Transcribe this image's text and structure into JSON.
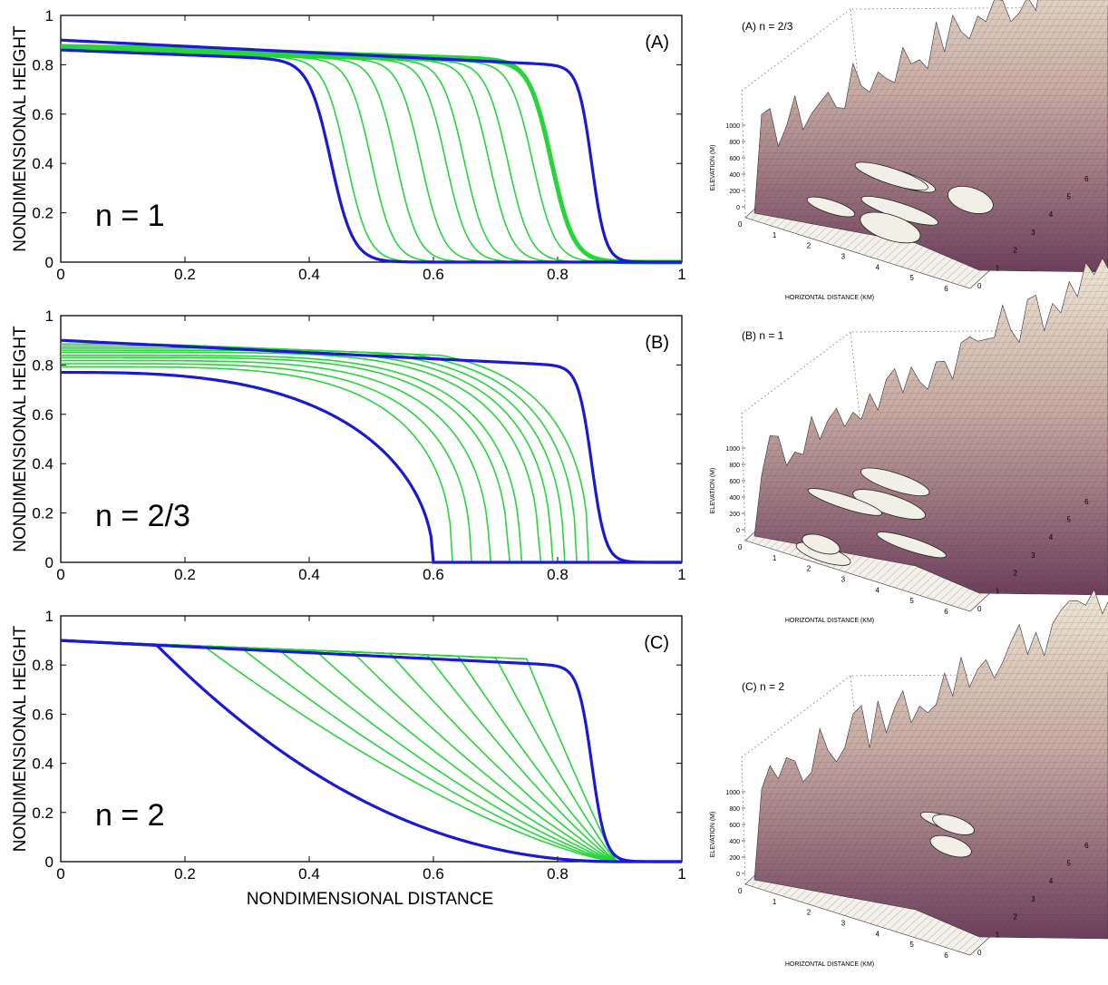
{
  "figure": {
    "left_panels": {
      "ylabel": "NONDIMENSIONAL HEIGHT",
      "xlabel": "NONDIMENSIONAL DISTANCE"
    },
    "right_panels": {
      "zlabel": "ELEVATION (M)",
      "xlabel": "HORIZONTAL DISTANCE (KM)"
    }
  },
  "colors": {
    "envelope": "#1a1ad6",
    "intermediate": "#27d43a",
    "surface_light": "#ece6d2",
    "surface_dark": "#7a4a66"
  },
  "chart_data": [
    {
      "type": "line",
      "panel_label": "(A)",
      "annotation": "n = 1",
      "xlim": [
        0,
        1
      ],
      "ylim": [
        0,
        1
      ],
      "x_ticks": [
        "0",
        "0.2",
        "0.4",
        "0.6",
        "0.8",
        "1"
      ],
      "y_ticks": [
        "0",
        "0.2",
        "0.4",
        "0.6",
        "0.8",
        "1"
      ],
      "grid": false,
      "profile": "sigmoid",
      "series": [
        {
          "role": "initial",
          "x": [
            0,
            0.8,
            0.83,
            0.86,
            0.88,
            0.9,
            1
          ],
          "y": [
            0.9,
            0.82,
            0.7,
            0.4,
            0.1,
            0.01,
            0
          ]
        },
        {
          "role": "final",
          "x": [
            0,
            0.38,
            0.41,
            0.43,
            0.45,
            0.48,
            0.52,
            1
          ],
          "y": [
            0.86,
            0.82,
            0.62,
            0.4,
            0.2,
            0.05,
            0.0,
            0
          ]
        },
        {
          "role": "intermediate_fronts",
          "front_x": [
            0.46,
            0.5,
            0.54,
            0.58,
            0.62,
            0.65,
            0.69,
            0.72,
            0.76,
            0.79
          ]
        }
      ]
    },
    {
      "type": "line",
      "panel_label": "(B)",
      "annotation": "n = 2/3",
      "xlim": [
        0,
        1
      ],
      "ylim": [
        0,
        1
      ],
      "x_ticks": [
        "0",
        "0.2",
        "0.4",
        "0.6",
        "0.8",
        "1"
      ],
      "y_ticks": [
        "0",
        "0.2",
        "0.4",
        "0.6",
        "0.8",
        "1"
      ],
      "grid": false,
      "profile": "concave",
      "series": [
        {
          "role": "initial",
          "x": [
            0,
            0.8,
            0.83,
            0.86,
            0.88,
            0.9,
            1
          ],
          "y": [
            0.9,
            0.82,
            0.7,
            0.4,
            0.1,
            0.01,
            0
          ]
        },
        {
          "role": "final",
          "x": [
            0,
            0.2,
            0.4,
            0.5,
            0.55,
            0.58,
            0.6,
            1
          ],
          "y": [
            0.77,
            0.73,
            0.6,
            0.45,
            0.3,
            0.17,
            0,
            0
          ]
        },
        {
          "role": "intermediate_fronts",
          "front_x": [
            0.63,
            0.66,
            0.69,
            0.72,
            0.74,
            0.77,
            0.79,
            0.81,
            0.83,
            0.85
          ]
        }
      ]
    },
    {
      "type": "line",
      "panel_label": "(C)",
      "annotation": "n = 2",
      "xlim": [
        0,
        1
      ],
      "ylim": [
        0,
        1
      ],
      "x_ticks": [
        "0",
        "0.2",
        "0.4",
        "0.6",
        "0.8",
        "1"
      ],
      "y_ticks": [
        "0",
        "0.2",
        "0.4",
        "0.6",
        "0.8",
        "1"
      ],
      "grid": false,
      "profile": "convex",
      "series": [
        {
          "role": "initial",
          "x": [
            0,
            0.8,
            0.83,
            0.86,
            0.88,
            0.9,
            1
          ],
          "y": [
            0.9,
            0.82,
            0.7,
            0.4,
            0.1,
            0.01,
            0
          ]
        },
        {
          "role": "final",
          "x": [
            0,
            0.15,
            0.3,
            0.45,
            0.6,
            0.75,
            0.9,
            1
          ],
          "y": [
            0.9,
            0.88,
            0.66,
            0.42,
            0.22,
            0.07,
            0.01,
            0
          ]
        },
        {
          "role": "intermediate_ridges",
          "start_x": [
            0.23,
            0.29,
            0.35,
            0.41,
            0.47,
            0.53,
            0.59,
            0.64,
            0.7,
            0.75
          ]
        }
      ]
    },
    {
      "type": "surface",
      "title": "(A) n = 2/3",
      "z_ticks": [
        "0",
        "200",
        "400",
        "600",
        "800",
        "1000"
      ],
      "x_ticks": [
        "0",
        "1",
        "2",
        "3",
        "4",
        "5",
        "6"
      ],
      "y_ticks": [
        "0",
        "1",
        "2",
        "3",
        "4",
        "5",
        "6"
      ]
    },
    {
      "type": "surface",
      "title": "(B) n = 1",
      "z_ticks": [
        "0",
        "200",
        "400",
        "600",
        "800",
        "1000"
      ],
      "x_ticks": [
        "0",
        "1",
        "2",
        "3",
        "4",
        "5",
        "6"
      ],
      "y_ticks": [
        "0",
        "1",
        "2",
        "3",
        "4",
        "5",
        "6"
      ]
    },
    {
      "type": "surface",
      "title": "(C) n = 2",
      "z_ticks": [
        "0",
        "200",
        "400",
        "600",
        "800",
        "1000"
      ],
      "x_ticks": [
        "0",
        "1",
        "2",
        "3",
        "4",
        "5",
        "6"
      ],
      "y_ticks": [
        "0",
        "1",
        "2",
        "3",
        "4",
        "5",
        "6"
      ]
    }
  ]
}
